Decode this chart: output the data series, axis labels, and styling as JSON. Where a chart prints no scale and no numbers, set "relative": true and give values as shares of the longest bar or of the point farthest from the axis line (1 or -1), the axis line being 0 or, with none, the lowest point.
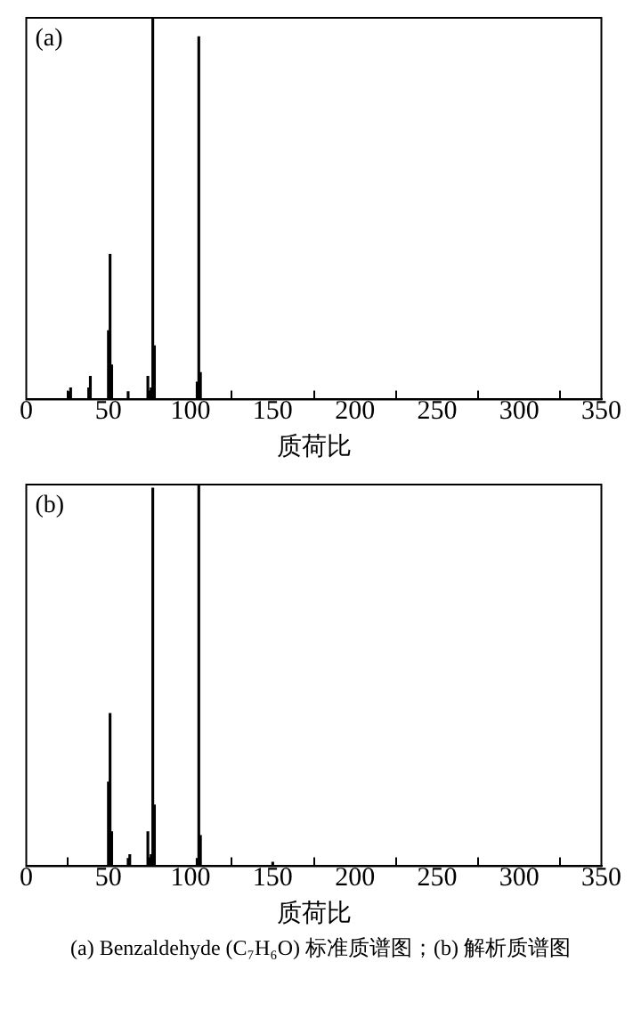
{
  "chart_data": [
    {
      "type": "bar",
      "relative": true,
      "xlabel": "质荷比",
      "annotations": [
        "(a)"
      ],
      "xlim": [
        0,
        350
      ],
      "xticks": [
        0,
        50,
        100,
        150,
        200,
        250,
        300,
        350
      ],
      "grid": false,
      "x": [
        26,
        27,
        38,
        39,
        50,
        51,
        52,
        62,
        74,
        76,
        77,
        78,
        104,
        105,
        106
      ],
      "series": [
        {
          "color": "#000000",
          "values": [
            0.02,
            0.03,
            0.03,
            0.06,
            0.18,
            0.38,
            0.09,
            0.02,
            0.06,
            0.03,
            1,
            0.14,
            0.045,
            0.95,
            0.07
          ]
        }
      ]
    },
    {
      "type": "bar",
      "relative": true,
      "xlabel": "质荷比",
      "annotations": [
        "(b)",
        "(a) Benzaldehyde (C₇H₆O) 标准质谱图；(b) 解析质谱图"
      ],
      "xlim": [
        0,
        350
      ],
      "xticks": [
        0,
        50,
        100,
        150,
        200,
        250,
        300,
        350
      ],
      "grid": false,
      "x": [
        50,
        51,
        52,
        62,
        63,
        74,
        76,
        77,
        78,
        104,
        105,
        106,
        150
      ],
      "series": [
        {
          "color": "#000000",
          "values": [
            0.22,
            0.4,
            0.09,
            0.02,
            0.03,
            0.09,
            0.03,
            0.99,
            0.16,
            0.02,
            1,
            0.08,
            0.01
          ]
        }
      ]
    }
  ]
}
